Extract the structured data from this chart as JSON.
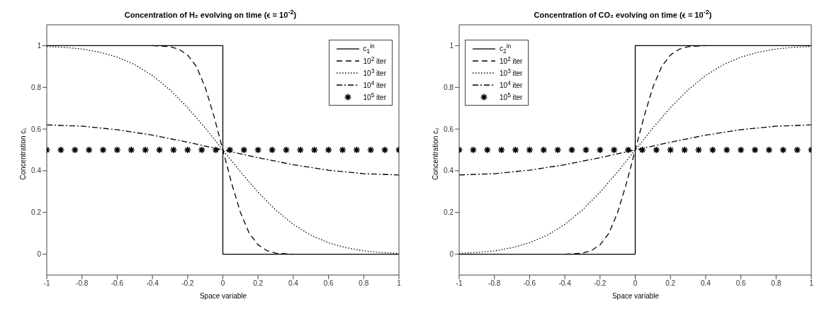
{
  "chart_data": [
    {
      "type": "line",
      "title": "Concentration of H₂ evolving on time (ϵ = 10$^{-2}$)",
      "xlabel": "Space variable",
      "ylabel": "Concentration c₁",
      "xlim": [
        -1,
        1
      ],
      "ylim": [
        -0.1,
        1.1
      ],
      "xticks": [
        -1,
        -0.8,
        -0.6,
        -0.4,
        -0.2,
        0,
        0.2,
        0.4,
        0.6,
        0.8,
        1
      ],
      "yticks": [
        0,
        0.2,
        0.4,
        0.6,
        0.8,
        1
      ],
      "legend": "top right",
      "grid": false,
      "series": [
        {
          "name": "c$_{1}$$^{in}$",
          "color": "#000000",
          "line_style": "solid",
          "marker": "none",
          "x": [
            -1,
            0,
            0,
            1
          ],
          "values": [
            1,
            1,
            0,
            0
          ]
        },
        {
          "name": "10$^{2}$ iter",
          "color": "#000000",
          "line_style": "dashed",
          "marker": "none",
          "x": [
            -0.4,
            -0.3,
            -0.25,
            -0.2,
            -0.15,
            -0.1,
            -0.05,
            0,
            0.05,
            0.1,
            0.15,
            0.2,
            0.25,
            0.3,
            0.4
          ],
          "values": [
            1,
            0.995,
            0.983,
            0.955,
            0.9,
            0.8,
            0.66,
            0.5,
            0.34,
            0.2,
            0.1,
            0.045,
            0.017,
            0.005,
            0
          ]
        },
        {
          "name": "10$^{3}$ iter",
          "color": "#000000",
          "line_style": "dotted",
          "marker": "none",
          "x": [
            -1,
            -0.9,
            -0.8,
            -0.7,
            -0.6,
            -0.5,
            -0.4,
            -0.3,
            -0.2,
            -0.1,
            0,
            0.1,
            0.2,
            0.3,
            0.4,
            0.5,
            0.6,
            0.7,
            0.8,
            0.9,
            1
          ],
          "values": [
            0.996,
            0.992,
            0.984,
            0.969,
            0.945,
            0.909,
            0.857,
            0.788,
            0.703,
            0.605,
            0.5,
            0.395,
            0.297,
            0.212,
            0.143,
            0.091,
            0.055,
            0.031,
            0.016,
            0.008,
            0.004
          ]
        },
        {
          "name": "10$^{4}$ iter",
          "color": "#000000",
          "line_style": "dashdot",
          "marker": "none",
          "x": [
            -1,
            -0.8,
            -0.6,
            -0.4,
            -0.2,
            0,
            0.2,
            0.4,
            0.6,
            0.8,
            1
          ],
          "values": [
            0.62,
            0.614,
            0.597,
            0.571,
            0.537,
            0.5,
            0.463,
            0.429,
            0.403,
            0.386,
            0.38
          ]
        },
        {
          "name": "10$^{5}$ iter",
          "type": "scatter",
          "color": "#000000",
          "marker": "cross",
          "x": [
            -1,
            -0.92,
            -0.84,
            -0.76,
            -0.68,
            -0.6,
            -0.52,
            -0.44,
            -0.36,
            -0.28,
            -0.2,
            -0.12,
            -0.04,
            0.04,
            0.12,
            0.2,
            0.28,
            0.36,
            0.44,
            0.52,
            0.6,
            0.68,
            0.76,
            0.84,
            0.92,
            1
          ],
          "values": [
            0.5,
            0.5,
            0.5,
            0.5,
            0.5,
            0.5,
            0.5,
            0.5,
            0.5,
            0.5,
            0.5,
            0.5,
            0.5,
            0.5,
            0.5,
            0.5,
            0.5,
            0.5,
            0.5,
            0.5,
            0.5,
            0.5,
            0.5,
            0.5,
            0.5,
            0.5
          ]
        }
      ]
    },
    {
      "type": "line",
      "title": "Concentration of CO₂ evolving on time (ϵ = 10$^{-2}$)",
      "xlabel": "Space variable",
      "ylabel": "Concentration c₂",
      "xlim": [
        -1,
        1
      ],
      "ylim": [
        -0.1,
        1.1
      ],
      "xticks": [
        -1,
        -0.8,
        -0.6,
        -0.4,
        -0.2,
        0,
        0.2,
        0.4,
        0.6,
        0.8,
        1
      ],
      "yticks": [
        0,
        0.2,
        0.4,
        0.6,
        0.8,
        1
      ],
      "legend": "top left",
      "grid": false,
      "series": [
        {
          "name": "c$_{2}$$^{in}$",
          "color": "#000000",
          "line_style": "solid",
          "marker": "none",
          "x": [
            -1,
            0,
            0,
            1
          ],
          "values": [
            0,
            0,
            1,
            1
          ]
        },
        {
          "name": "10$^{2}$ iter",
          "color": "#000000",
          "line_style": "dashed",
          "marker": "none",
          "x": [
            -0.4,
            -0.3,
            -0.25,
            -0.2,
            -0.15,
            -0.1,
            -0.05,
            0,
            0.05,
            0.1,
            0.15,
            0.2,
            0.25,
            0.3,
            0.4
          ],
          "values": [
            0,
            0.005,
            0.017,
            0.045,
            0.1,
            0.2,
            0.34,
            0.5,
            0.66,
            0.8,
            0.9,
            0.955,
            0.983,
            0.995,
            1
          ]
        },
        {
          "name": "10$^{3}$ iter",
          "color": "#000000",
          "line_style": "dotted",
          "marker": "none",
          "x": [
            -1,
            -0.9,
            -0.8,
            -0.7,
            -0.6,
            -0.5,
            -0.4,
            -0.3,
            -0.2,
            -0.1,
            0,
            0.1,
            0.2,
            0.3,
            0.4,
            0.5,
            0.6,
            0.7,
            0.8,
            0.9,
            1
          ],
          "values": [
            0.004,
            0.008,
            0.016,
            0.031,
            0.055,
            0.091,
            0.143,
            0.212,
            0.297,
            0.395,
            0.5,
            0.605,
            0.703,
            0.788,
            0.857,
            0.909,
            0.945,
            0.969,
            0.984,
            0.992,
            0.996
          ]
        },
        {
          "name": "10$^{4}$ iter",
          "color": "#000000",
          "line_style": "dashdot",
          "marker": "none",
          "x": [
            -1,
            -0.8,
            -0.6,
            -0.4,
            -0.2,
            0,
            0.2,
            0.4,
            0.6,
            0.8,
            1
          ],
          "values": [
            0.38,
            0.386,
            0.403,
            0.429,
            0.463,
            0.5,
            0.537,
            0.571,
            0.597,
            0.614,
            0.62
          ]
        },
        {
          "name": "10$^{5}$ iter",
          "type": "scatter",
          "color": "#000000",
          "marker": "cross",
          "x": [
            -1,
            -0.92,
            -0.84,
            -0.76,
            -0.68,
            -0.6,
            -0.52,
            -0.44,
            -0.36,
            -0.28,
            -0.2,
            -0.12,
            -0.04,
            0.04,
            0.12,
            0.2,
            0.28,
            0.36,
            0.44,
            0.52,
            0.6,
            0.68,
            0.76,
            0.84,
            0.92,
            1
          ],
          "values": [
            0.5,
            0.5,
            0.5,
            0.5,
            0.5,
            0.5,
            0.5,
            0.5,
            0.5,
            0.5,
            0.5,
            0.5,
            0.5,
            0.5,
            0.5,
            0.5,
            0.5,
            0.5,
            0.5,
            0.5,
            0.5,
            0.5,
            0.5,
            0.5,
            0.5,
            0.5
          ]
        }
      ]
    }
  ]
}
